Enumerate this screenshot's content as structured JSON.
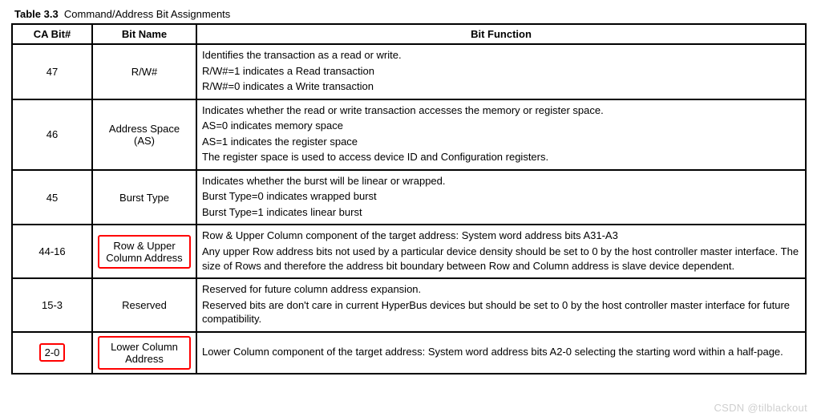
{
  "caption_label": "Table 3.3",
  "caption_title": "Command/Address Bit Assignments",
  "columns": [
    "CA Bit#",
    "Bit Name",
    "Bit Function"
  ],
  "highlight_color": "#ff0000",
  "border_color": "#000000",
  "rows": [
    {
      "bit": "47",
      "name": "R/W#",
      "bit_highlight": false,
      "name_highlight": false,
      "func": [
        "Identifies the transaction as a read or write.",
        "R/W#=1 indicates a Read transaction",
        "R/W#=0 indicates a Write transaction"
      ]
    },
    {
      "bit": "46",
      "name": "Address Space (AS)",
      "bit_highlight": false,
      "name_highlight": false,
      "func": [
        "Indicates whether the read or write transaction accesses the memory or register space.",
        "AS=0 indicates memory space",
        "AS=1 indicates the register space",
        "The register space is used to access device ID and Configuration registers."
      ]
    },
    {
      "bit": "45",
      "name": "Burst Type",
      "bit_highlight": false,
      "name_highlight": false,
      "func": [
        "Indicates whether the burst will be linear or wrapped.",
        "Burst Type=0 indicates wrapped burst",
        "Burst Type=1 indicates linear burst"
      ]
    },
    {
      "bit": "44-16",
      "name": "Row & Upper Column Address",
      "bit_highlight": false,
      "name_highlight": true,
      "func": [
        "Row & Upper Column component of the target address: System word address bits A31-A3",
        "Any upper Row address bits not used by a particular device density should be set to 0 by the host controller master interface. The size of Rows and therefore the address bit boundary between Row and Column address is slave device dependent."
      ]
    },
    {
      "bit": "15-3",
      "name": "Reserved",
      "bit_highlight": false,
      "name_highlight": false,
      "func": [
        "Reserved for future column address expansion.",
        "Reserved bits are don't care in current HyperBus devices but should be set to 0 by the host controller master interface for future compatibility."
      ]
    },
    {
      "bit": "2-0",
      "name": "Lower Column Address",
      "bit_highlight": true,
      "name_highlight": true,
      "func": [
        "Lower Column component of the target address: System word address bits A2-0 selecting the starting word within a half-page."
      ]
    }
  ],
  "watermark": "CSDN @tilblackout"
}
